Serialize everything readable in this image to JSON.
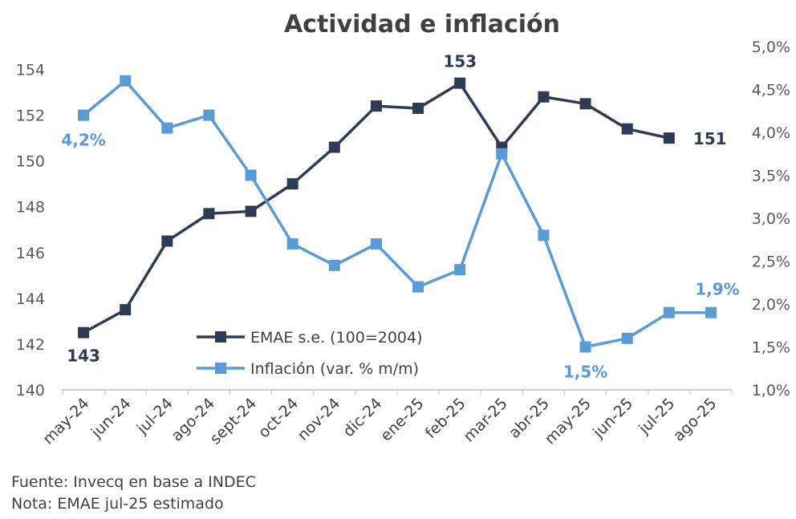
{
  "chart_data": {
    "type": "line",
    "title": "Actividad e inflación",
    "categories": [
      "may-24",
      "jun-24",
      "jul-24",
      "ago-24",
      "sept-24",
      "oct-24",
      "nov-24",
      "dic-24",
      "ene-25",
      "feb-25",
      "mar-25",
      "abr-25",
      "may-25",
      "jun-25",
      "jul-25",
      "ago-25"
    ],
    "y_left": {
      "ticks": [
        "140",
        "142",
        "144",
        "146",
        "148",
        "150",
        "152",
        "154"
      ],
      "ylim": [
        140,
        155
      ]
    },
    "y_right": {
      "ticks": [
        "1,0%",
        "1,5%",
        "2,0%",
        "2,5%",
        "3,0%",
        "3,5%",
        "4,0%",
        "4,5%",
        "5,0%"
      ],
      "ylim": [
        1.0,
        5.0
      ]
    },
    "series": [
      {
        "name": "EMAE s.e. (100=2004)",
        "axis": "left",
        "color": "#2e3b55",
        "values": [
          142.5,
          143.5,
          146.5,
          147.7,
          147.8,
          149.0,
          150.6,
          152.4,
          152.3,
          153.4,
          150.6,
          152.8,
          152.5,
          151.4,
          151.0,
          null
        ]
      },
      {
        "name": "Inflación (var. % m/m)",
        "axis": "right",
        "color": "#5b9bd5",
        "values": [
          4.2,
          4.6,
          4.05,
          4.2,
          3.5,
          2.7,
          2.45,
          2.7,
          2.2,
          2.4,
          3.75,
          2.8,
          1.5,
          1.6,
          1.9,
          1.9
        ]
      }
    ],
    "data_labels": [
      {
        "series": 0,
        "index": 0,
        "text": "143"
      },
      {
        "series": 0,
        "index": 9,
        "text": "153"
      },
      {
        "series": 0,
        "index": 14,
        "text": "151"
      },
      {
        "series": 1,
        "index": 0,
        "text": "4,2%"
      },
      {
        "series": 1,
        "index": 12,
        "text": "1,5%"
      },
      {
        "series": 1,
        "index": 15,
        "text": "1,9%"
      }
    ],
    "grid": false,
    "legend": "center"
  },
  "notes": {
    "source": "Fuente: Invecq en base a INDEC",
    "note": "Nota: EMAE jul-25 estimado"
  }
}
